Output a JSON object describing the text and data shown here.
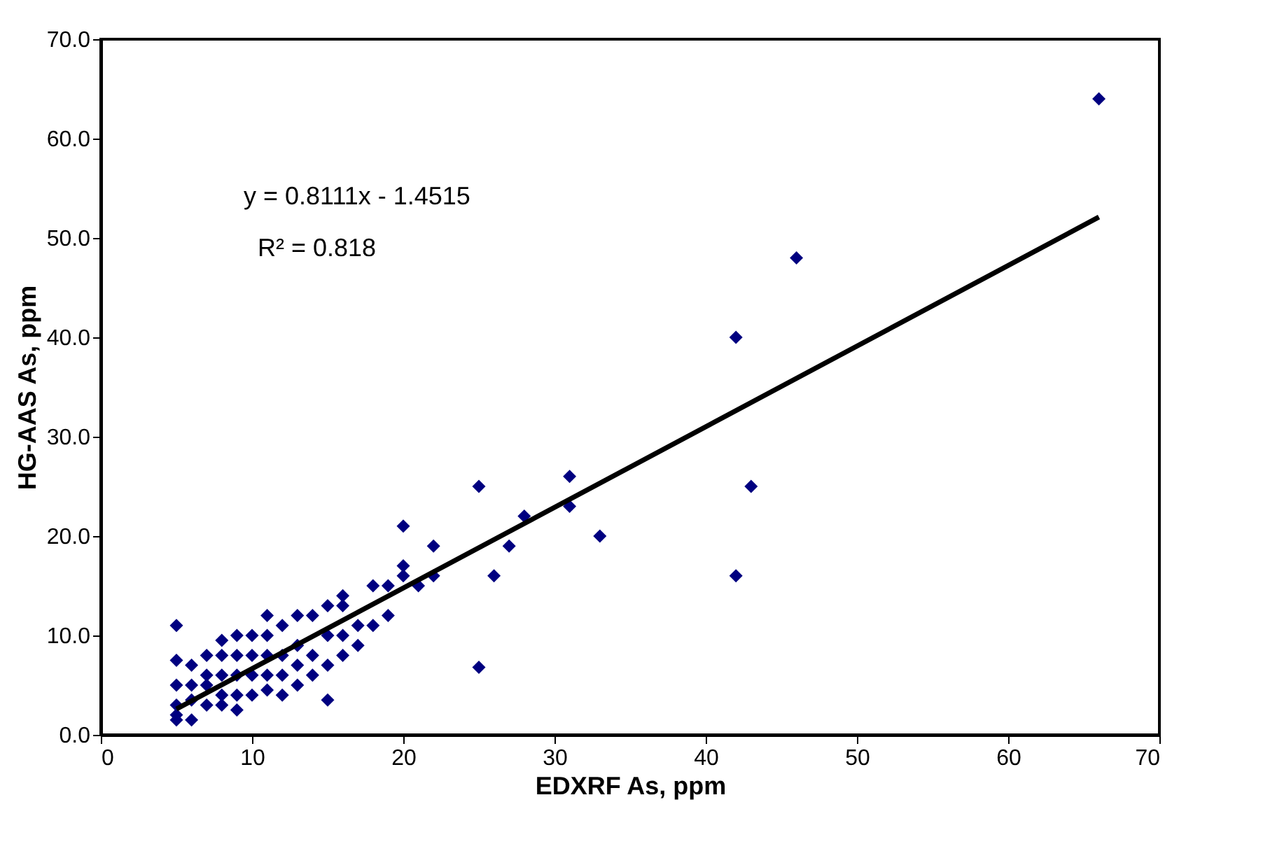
{
  "chart_data": {
    "type": "scatter",
    "xlabel": "EDXRF As, ppm",
    "ylabel": "HG-AAS As, ppm",
    "xlim": [
      0,
      70
    ],
    "xticks": [
      0,
      10,
      20,
      30,
      40,
      50,
      60,
      70
    ],
    "ylim": [
      0,
      70
    ],
    "yticks": [
      {
        "value": 0,
        "label": "0.0"
      },
      {
        "value": 10,
        "label": "10.0"
      },
      {
        "value": 20,
        "label": "20.0"
      },
      {
        "value": 30,
        "label": "30.0"
      },
      {
        "value": 40,
        "label": "40.0"
      },
      {
        "value": 50,
        "label": "50.0"
      },
      {
        "value": 60,
        "label": "60.0"
      },
      {
        "value": 70,
        "label": "70.0"
      }
    ],
    "grid": false,
    "annotations": [
      "y = 0.8111x - 1.4515",
      "R² = 0.818"
    ],
    "series": [
      {
        "marker": "diamond",
        "color": "#000080",
        "x": [
          66,
          46,
          42,
          42,
          43,
          33,
          31,
          31,
          28,
          27,
          26,
          25,
          25,
          22,
          22,
          21,
          20,
          20,
          20,
          19,
          19,
          18,
          18,
          17,
          17,
          16,
          16,
          16,
          16,
          15,
          15,
          15,
          15,
          14,
          14,
          14,
          13,
          13,
          13,
          13,
          12,
          12,
          12,
          12,
          11,
          11,
          11,
          11,
          11,
          10,
          10,
          10,
          10,
          9,
          9,
          9,
          9,
          9,
          8,
          8,
          8,
          8,
          8,
          7,
          7,
          7,
          7,
          6,
          6,
          6,
          6,
          5,
          5,
          5,
          5,
          5,
          5
        ],
        "values": [
          64,
          48,
          40,
          16,
          25,
          20,
          26,
          23,
          22,
          19,
          16,
          25,
          6.8,
          19,
          16,
          15,
          21,
          17,
          16,
          15,
          12,
          15,
          11,
          11,
          9,
          14,
          13,
          10,
          8,
          13,
          10,
          7,
          3.5,
          12,
          8,
          6,
          12,
          9,
          7,
          5,
          11,
          8,
          6,
          4,
          12,
          10,
          8,
          6,
          4.5,
          10,
          8,
          6,
          4,
          10,
          8,
          6,
          4,
          2.5,
          9.5,
          8,
          6,
          4,
          3,
          8,
          6,
          5,
          3,
          7,
          5,
          3.5,
          1.5,
          11,
          7.5,
          5,
          3,
          2,
          1.5
        ]
      },
      {
        "type": "line",
        "marker": "none",
        "color": "#000000",
        "line_style": "solid",
        "x": [
          5,
          66
        ],
        "values": [
          2.6,
          52.1
        ]
      }
    ]
  }
}
